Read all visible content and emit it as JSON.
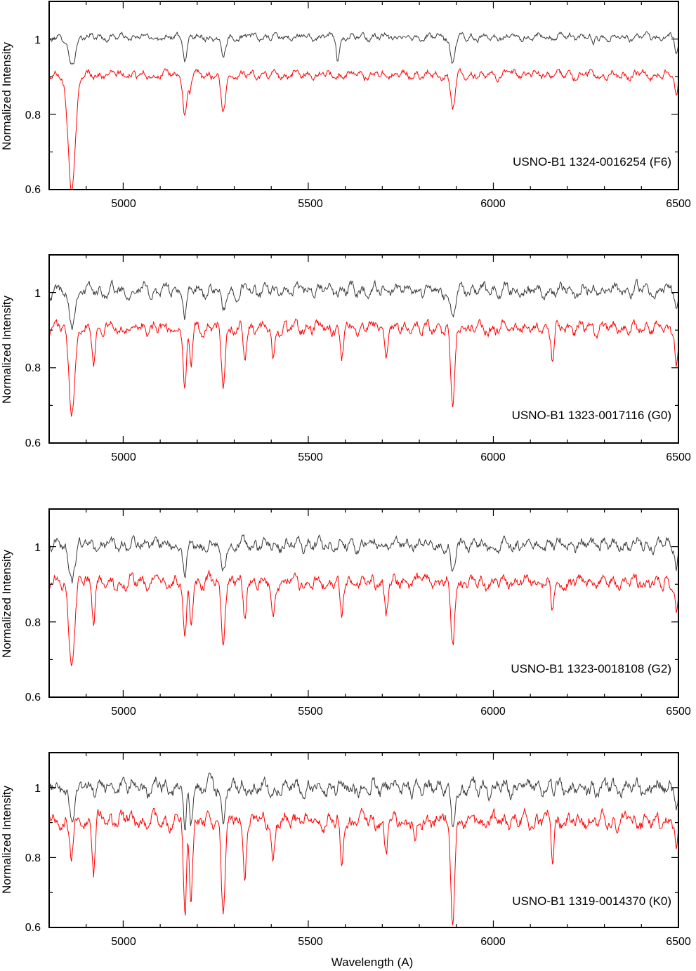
{
  "chart_data": [
    {
      "type": "line",
      "annotation": "USNO-B1 1324-0016254 (F6)",
      "xlabel": "",
      "ylabel": "Normalized Intensity",
      "xlim": [
        4800,
        6500
      ],
      "ylim": [
        0.6,
        1.1
      ],
      "xticks": [
        5000,
        5500,
        6000,
        6500
      ],
      "yticks": [
        0.6,
        0.8,
        1
      ],
      "series": [
        {
          "color": "#3a3a3a",
          "baseline": 1.005,
          "noise": 0.012,
          "absorption_lines": [
            [
              4861,
              0.07,
              10
            ],
            [
              5167,
              0.06,
              5
            ],
            [
              5270,
              0.05,
              6
            ],
            [
              5580,
              0.06,
              4
            ],
            [
              5890,
              0.07,
              6
            ],
            [
              6270,
              0.02,
              4
            ],
            [
              6495,
              0.04,
              4
            ]
          ]
        },
        {
          "color": "#ff0000",
          "baseline": 0.905,
          "noise": 0.014,
          "absorption_lines": [
            [
              4861,
              0.3,
              10
            ],
            [
              5167,
              0.11,
              5
            ],
            [
              5180,
              0.05,
              4
            ],
            [
              5270,
              0.1,
              6
            ],
            [
              5890,
              0.09,
              6
            ],
            [
              6495,
              0.06,
              4
            ]
          ]
        }
      ]
    },
    {
      "type": "line",
      "annotation": "USNO-B1 1323-0017116 (G0)",
      "xlabel": "",
      "ylabel": "Normalized Intensity",
      "xlim": [
        4800,
        6500
      ],
      "ylim": [
        0.6,
        1.1
      ],
      "xticks": [
        5000,
        5500,
        6000,
        6500
      ],
      "yticks": [
        0.6,
        0.8,
        1
      ],
      "series": [
        {
          "color": "#3a3a3a",
          "baseline": 1.005,
          "noise": 0.022,
          "absorption_lines": [
            [
              4861,
              0.08,
              8
            ],
            [
              5167,
              0.07,
              5
            ],
            [
              5270,
              0.06,
              6
            ],
            [
              5890,
              0.08,
              6
            ],
            [
              6495,
              0.05,
              4
            ]
          ]
        },
        {
          "color": "#ff0000",
          "baseline": 0.905,
          "noise": 0.022,
          "absorption_lines": [
            [
              4861,
              0.21,
              8
            ],
            [
              4920,
              0.08,
              4
            ],
            [
              5167,
              0.17,
              4
            ],
            [
              5183,
              0.1,
              4
            ],
            [
              5270,
              0.15,
              5
            ],
            [
              5328,
              0.09,
              4
            ],
            [
              5405,
              0.08,
              4
            ],
            [
              5590,
              0.09,
              4
            ],
            [
              5710,
              0.07,
              4
            ],
            [
              5890,
              0.2,
              6
            ],
            [
              6160,
              0.09,
              4
            ],
            [
              6495,
              0.09,
              4
            ]
          ]
        }
      ]
    },
    {
      "type": "line",
      "annotation": "USNO-B1 1323-0018108 (G2)",
      "xlabel": "",
      "ylabel": "Normalized Intensity",
      "xlim": [
        4800,
        6500
      ],
      "ylim": [
        0.6,
        1.1
      ],
      "xticks": [
        5000,
        5500,
        6000,
        6500
      ],
      "yticks": [
        0.6,
        0.8,
        1
      ],
      "series": [
        {
          "color": "#3a3a3a",
          "baseline": 1.005,
          "noise": 0.022,
          "absorption_lines": [
            [
              4861,
              0.09,
              8
            ],
            [
              5167,
              0.08,
              5
            ],
            [
              5270,
              0.07,
              6
            ],
            [
              5890,
              0.08,
              6
            ],
            [
              6495,
              0.05,
              4
            ]
          ]
        },
        {
          "color": "#ff0000",
          "baseline": 0.905,
          "noise": 0.024,
          "absorption_lines": [
            [
              4861,
              0.22,
              8
            ],
            [
              4920,
              0.09,
              4
            ],
            [
              5167,
              0.17,
              4
            ],
            [
              5183,
              0.1,
              4
            ],
            [
              5270,
              0.16,
              5
            ],
            [
              5328,
              0.09,
              4
            ],
            [
              5405,
              0.09,
              4
            ],
            [
              5590,
              0.1,
              4
            ],
            [
              5710,
              0.08,
              4
            ],
            [
              5890,
              0.17,
              5
            ],
            [
              6160,
              0.07,
              4
            ],
            [
              6495,
              0.09,
              4
            ]
          ]
        }
      ]
    },
    {
      "type": "line",
      "annotation": "USNO-B1 1319-0014370 (K0)",
      "xlabel": "Wavelength (A)",
      "ylabel": "Normalized Intensity",
      "xlim": [
        4800,
        6500
      ],
      "ylim": [
        0.6,
        1.1
      ],
      "xticks": [
        5000,
        5500,
        6000,
        6500
      ],
      "yticks": [
        0.6,
        0.8,
        1
      ],
      "series": [
        {
          "color": "#3a3a3a",
          "baseline": 1.0,
          "noise": 0.03,
          "absorption_lines": [
            [
              4861,
              0.08,
              8
            ],
            [
              5167,
              0.12,
              4
            ],
            [
              5183,
              0.1,
              4
            ],
            [
              5270,
              0.1,
              5
            ],
            [
              5890,
              0.12,
              5
            ],
            [
              6495,
              0.06,
              4
            ]
          ]
        },
        {
          "color": "#ff0000",
          "baseline": 0.905,
          "noise": 0.03,
          "absorption_lines": [
            [
              4861,
              0.1,
              6
            ],
            [
              4920,
              0.14,
              4
            ],
            [
              5167,
              0.29,
              4
            ],
            [
              5183,
              0.2,
              4
            ],
            [
              5270,
              0.24,
              5
            ],
            [
              5328,
              0.14,
              4
            ],
            [
              5405,
              0.12,
              4
            ],
            [
              5590,
              0.12,
              4
            ],
            [
              5710,
              0.1,
              4
            ],
            [
              5790,
              0.09,
              4
            ],
            [
              5890,
              0.3,
              5
            ],
            [
              6160,
              0.1,
              4
            ],
            [
              6495,
              0.1,
              4
            ]
          ]
        }
      ]
    }
  ]
}
